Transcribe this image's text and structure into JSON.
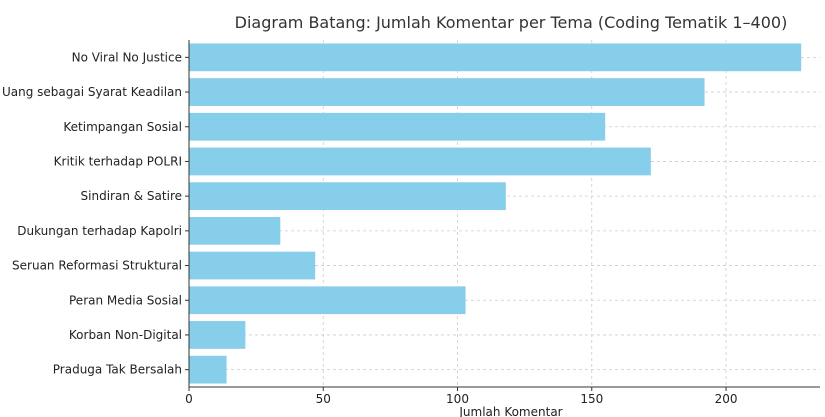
{
  "chart_data": {
    "type": "bar",
    "orientation": "horizontal",
    "title": "Diagram Batang: Jumlah Komentar per Tema (Coding Tematik 1–400)",
    "xlabel": "Jumlah Komentar",
    "ylabel": "",
    "xlim": [
      0,
      235
    ],
    "xticks": [
      0,
      50,
      100,
      150,
      200
    ],
    "grid": true,
    "bar_color": "#87CEEB",
    "categories": [
      "No Viral No Justice",
      "Uang sebagai Syarat Keadilan",
      "Ketimpangan Sosial",
      "Kritik terhadap POLRI",
      "Sindiran & Satire",
      "Dukungan terhadap Kapolri",
      "Seruan Reformasi Struktural",
      "Peran Media Sosial",
      "Korban Non-Digital",
      "Praduga Tak Bersalah"
    ],
    "values": [
      228,
      192,
      155,
      172,
      118,
      34,
      47,
      103,
      21,
      14
    ]
  }
}
